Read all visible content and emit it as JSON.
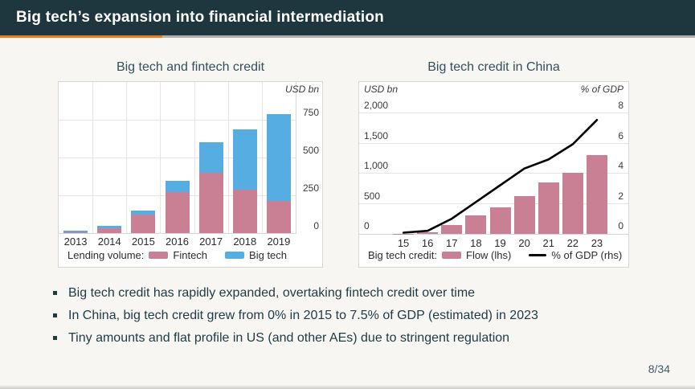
{
  "slide": {
    "title": "Big tech’s expansion into financial intermediation",
    "page_number": "8/34",
    "header_bg": "#1e363d",
    "accent_color": "#e87d1e"
  },
  "bullets": [
    "Big tech credit has rapidly expanded, overtaking fintech credit over time",
    "In China, big tech credit grew from 0% in 2015 to 7.5% of GDP (estimated) in 2023",
    "Tiny amounts and flat profile in US (and other AEs) due to stringent regulation"
  ],
  "chart_data": [
    {
      "type": "bar",
      "stacked": true,
      "title": "Big tech and fintech credit",
      "unit_label": "USD bn",
      "categories": [
        "2013",
        "2014",
        "2015",
        "2016",
        "2017",
        "2018",
        "2019"
      ],
      "series": [
        {
          "name": "Fintech",
          "color": "#ca8094",
          "values": [
            7,
            32,
            125,
            270,
            400,
            285,
            215
          ]
        },
        {
          "name": "Big tech",
          "color": "#56ade2",
          "values": [
            11,
            18,
            22,
            76,
            200,
            400,
            570
          ]
        }
      ],
      "legend_prefix": "Lending volume:",
      "yticks": [
        0,
        250,
        500,
        750
      ],
      "ytick_labels": [
        "0",
        "250",
        "500",
        "750"
      ],
      "ylim": [
        0,
        1000
      ],
      "grid": "horizontal+vertical",
      "legend_position": "bottom"
    },
    {
      "type": "bar+line",
      "title": "Big tech credit in China",
      "left_unit": "USD bn",
      "right_unit": "% of GDP",
      "categories": [
        "15",
        "16",
        "17",
        "18",
        "19",
        "20",
        "21",
        "22",
        "23"
      ],
      "bar_series": {
        "name": "Flow (lhs)",
        "axis": "left",
        "color": "#ca8094",
        "values": [
          2,
          30,
          150,
          310,
          440,
          620,
          850,
          1000,
          1300
        ]
      },
      "line_series": {
        "name": "% of GDP (rhs)",
        "axis": "right",
        "color": "#000000",
        "values": [
          0,
          0.2,
          1.0,
          2.1,
          3.2,
          4.3,
          4.9,
          5.9,
          7.5
        ]
      },
      "legend_prefix": "Big tech credit:",
      "left_ticks": [
        0,
        500,
        1000,
        1500,
        2000
      ],
      "left_tick_labels": [
        "0",
        "500",
        "1,000",
        "1,500",
        "2,000"
      ],
      "left_ylim": [
        0,
        2500
      ],
      "right_ticks": [
        0,
        2,
        4,
        6,
        8
      ],
      "right_tick_labels": [
        "0",
        "2",
        "4",
        "6",
        "8"
      ],
      "right_ylim": [
        0,
        10
      ],
      "grid": "horizontal",
      "legend_position": "bottom"
    }
  ]
}
